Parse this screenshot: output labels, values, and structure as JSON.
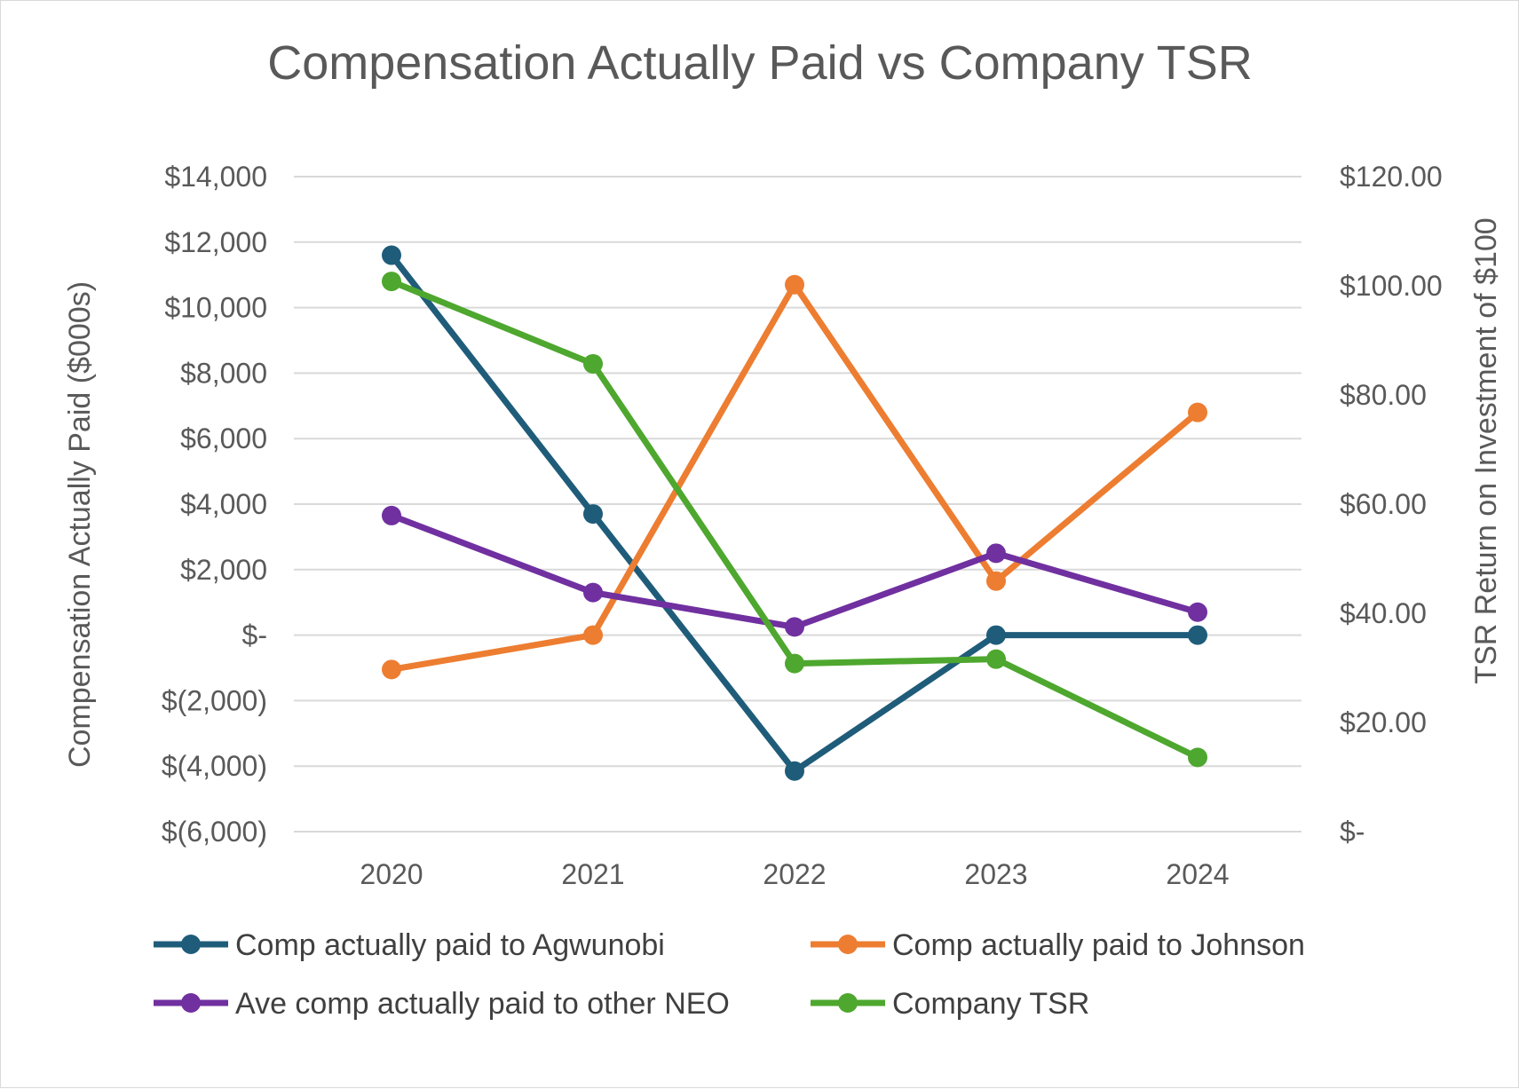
{
  "chart_data": {
    "type": "line",
    "title": "Compensation Actually Paid vs Company TSR",
    "categories": [
      "2020",
      "2021",
      "2022",
      "2023",
      "2024"
    ],
    "y_left": {
      "label": "Compensation Actually Paid ($000s)",
      "ylim": [
        -6000,
        14000
      ],
      "ticks": [
        -6000,
        -4000,
        -2000,
        0,
        2000,
        4000,
        6000,
        8000,
        10000,
        12000,
        14000
      ],
      "tick_labels": [
        "$(6,000)",
        "$(4,000)",
        "$(2,000)",
        "$-",
        "$2,000",
        "$4,000",
        "$6,000",
        "$8,000",
        "$10,000",
        "$12,000",
        "$14,000"
      ]
    },
    "y_right": {
      "label": "TSR Return on Investment of $100",
      "ylim": [
        0,
        120
      ],
      "ticks": [
        0,
        20,
        40,
        60,
        80,
        100,
        120
      ],
      "tick_labels": [
        "$-",
        "$20.00",
        "$40.00",
        "$60.00",
        "$80.00",
        "$100.00",
        "$120.00"
      ]
    },
    "grid": true,
    "legend_position": "bottom",
    "series": [
      {
        "name": "Comp actually paid to Agwunobi",
        "axis": "left",
        "color": "#1f5c7a",
        "values": [
          11600,
          3700,
          -4150,
          0,
          0
        ]
      },
      {
        "name": "Comp actually paid to Johnson",
        "axis": "left",
        "color": "#ed7d31",
        "values": [
          -1050,
          0,
          10700,
          1650,
          6800
        ]
      },
      {
        "name": "Ave comp actually paid to other NEO",
        "axis": "left",
        "color": "#7030a0",
        "values": [
          3650,
          1300,
          250,
          2500,
          700
        ]
      },
      {
        "name": "Company TSR",
        "axis": "right",
        "color": "#4ea72e",
        "values": [
          100.8,
          85.7,
          30.8,
          31.6,
          13.6
        ]
      }
    ]
  }
}
